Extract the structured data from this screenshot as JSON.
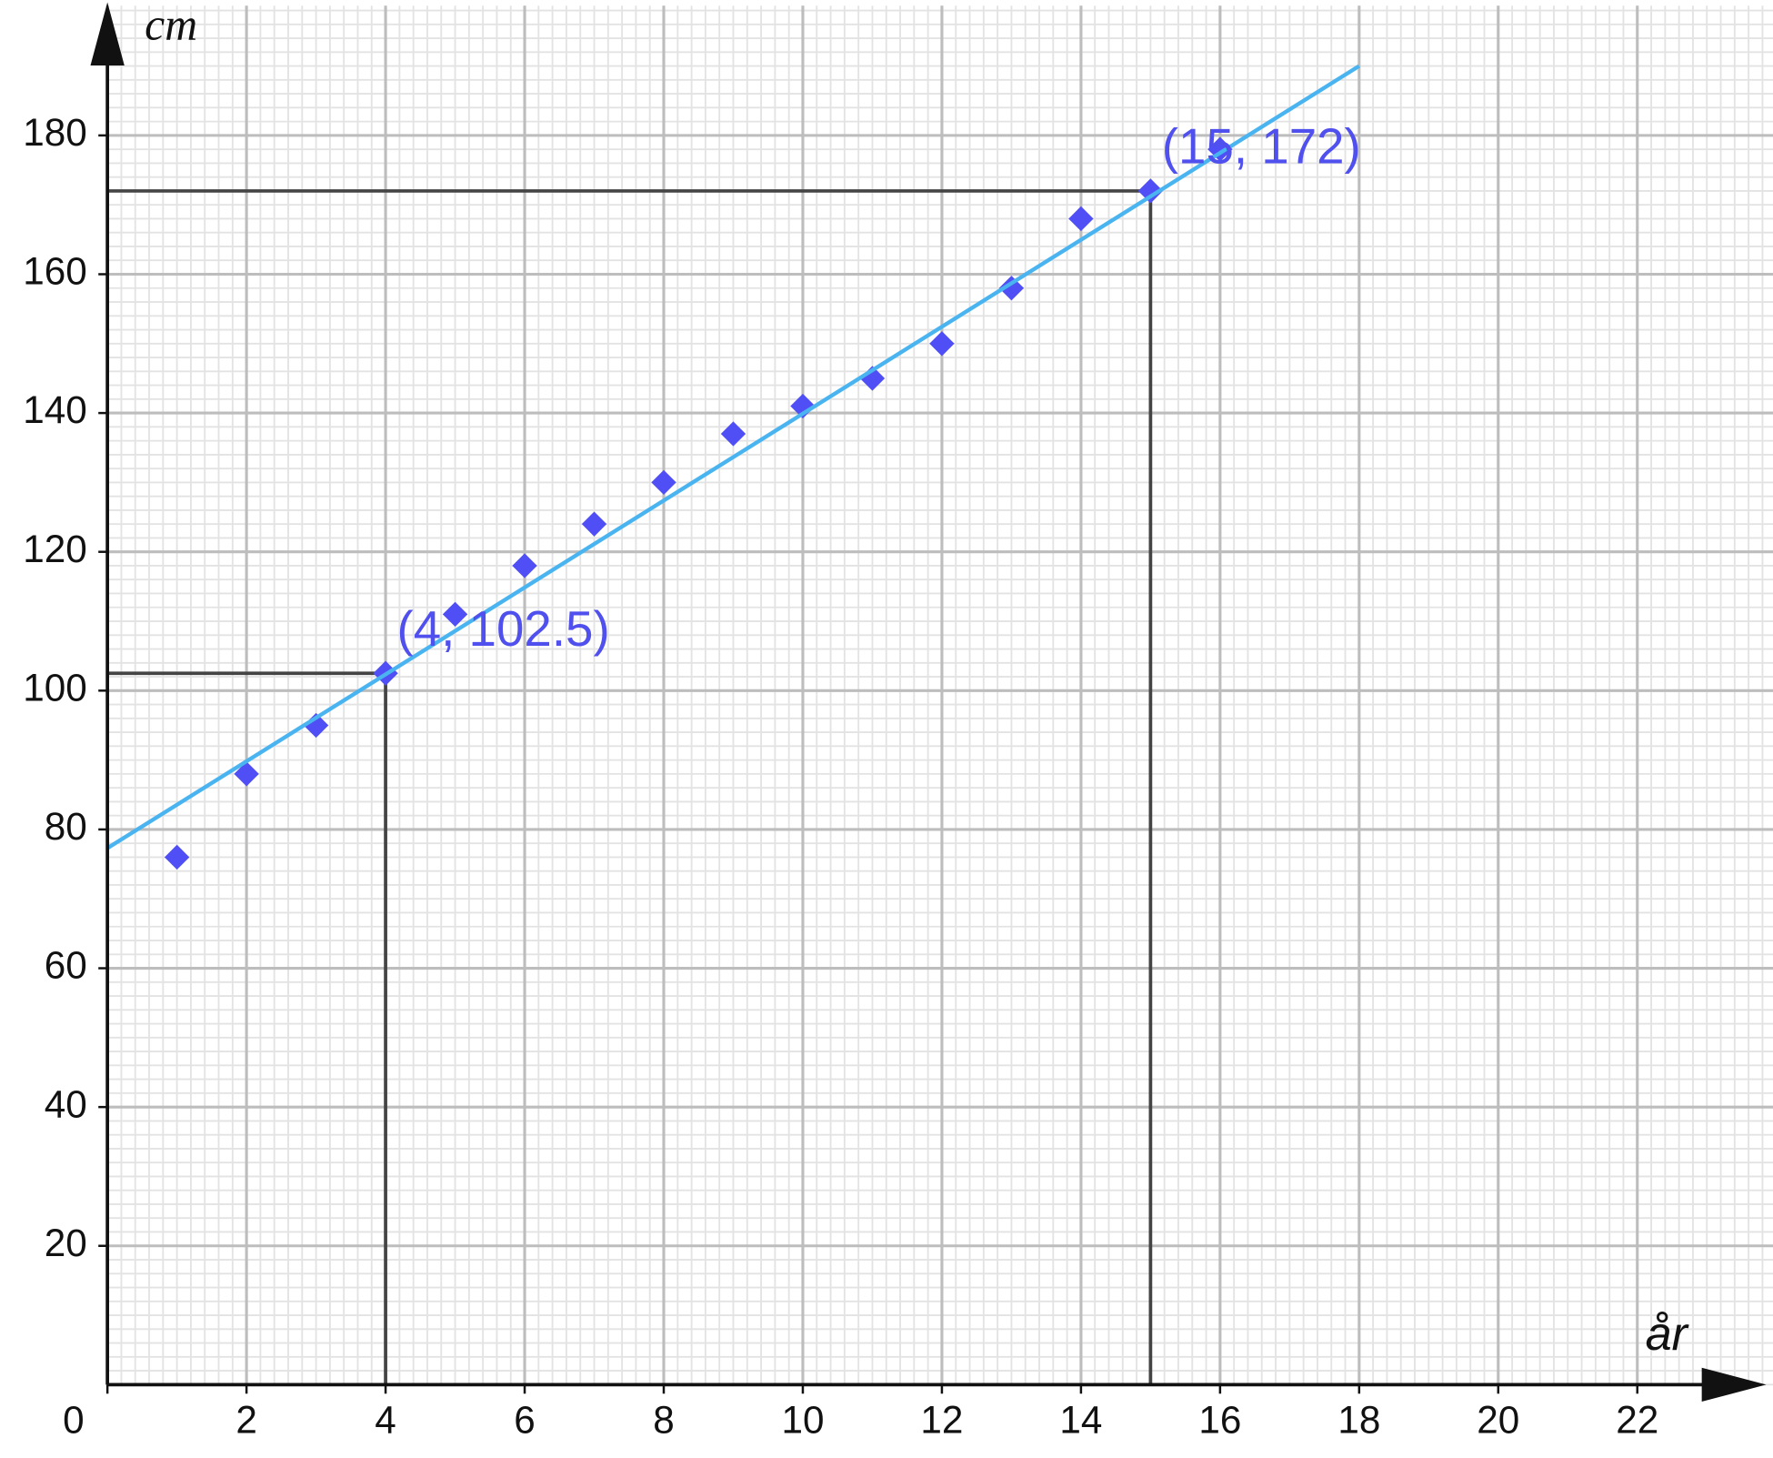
{
  "chart_data": {
    "type": "scatter",
    "x_label": "år",
    "y_label": "cm",
    "xlim": [
      0,
      23.8
    ],
    "ylim": [
      0,
      198.7
    ],
    "xticks": [
      0,
      2,
      4,
      6,
      8,
      10,
      12,
      14,
      16,
      18,
      20,
      22
    ],
    "yticks": [
      20,
      40,
      60,
      80,
      100,
      120,
      140,
      160,
      180
    ],
    "grid": true,
    "series": [
      {
        "color": "#4f4ff5",
        "x": [
          1,
          2,
          3,
          4,
          5,
          6,
          7,
          8,
          9,
          10,
          11,
          12,
          13,
          14,
          15,
          16
        ],
        "values": [
          76,
          88,
          95,
          102.5,
          111,
          118,
          124,
          130,
          137,
          141,
          145,
          150,
          158,
          168,
          172,
          178
        ]
      },
      {
        "type": "line",
        "color": "#4ab4f0",
        "x": [
          0,
          18
        ],
        "values": [
          77.3,
          190
        ]
      }
    ],
    "annotations": [
      {
        "text": "(4, 102.5)",
        "x": 4,
        "y": 102.5
      },
      {
        "text": "(15, 172)",
        "x": 15,
        "y": 172
      }
    ]
  }
}
